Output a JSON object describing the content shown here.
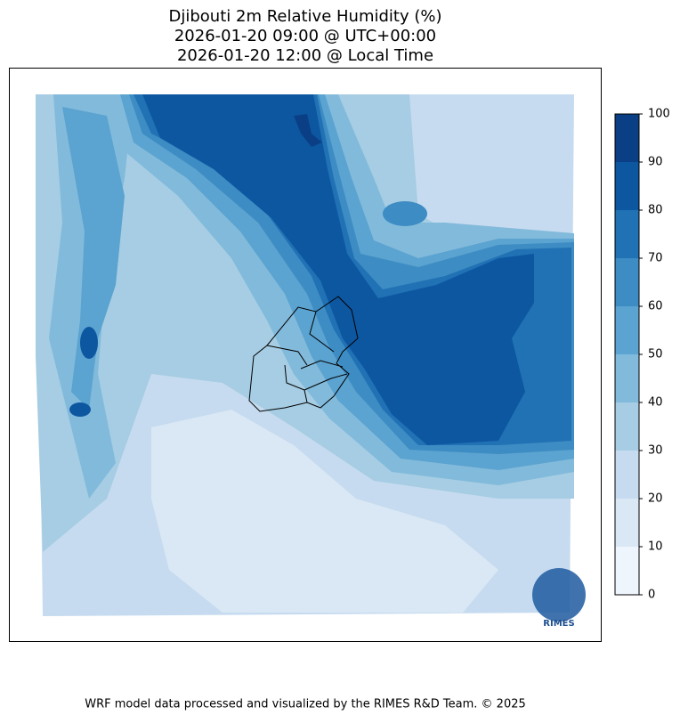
{
  "header": {
    "title": [
      "Djibouti 2m Relative Humidity (%)",
      "2026-01-20 09:00 @ UTC+00:00",
      "2026-01-20 12:00 @ Local Time"
    ]
  },
  "colorbar": {
    "lim": [
      0,
      100
    ],
    "ticks": [
      0,
      10,
      20,
      30,
      40,
      50,
      60,
      70,
      80,
      90,
      100
    ],
    "colors": [
      "#eef5fc",
      "#dae8f5",
      "#c6dbef",
      "#a6cde3",
      "#82badb",
      "#5ba3d0",
      "#3d8cc3",
      "#2171b5",
      "#0d57a1",
      "#0a3f85"
    ]
  },
  "logo": {
    "text": "RIMES"
  },
  "footer": {
    "text": "WRF model data processed and visualized by the RIMES R&D Team. © 2025"
  }
}
